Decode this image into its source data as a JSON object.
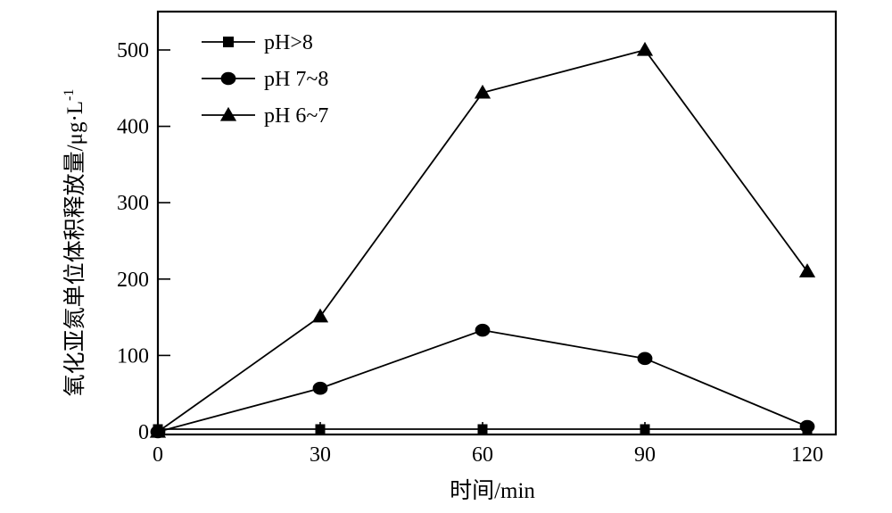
{
  "chart_data": {
    "type": "line",
    "title": "",
    "xlabel": "时间/min",
    "ylabel": "氧化亚氮单位体积释放量/μg·L",
    "ylabel_superscript": "-1",
    "x": [
      0,
      30,
      60,
      90,
      120
    ],
    "xlim": [
      0,
      125
    ],
    "ylim": [
      0,
      555
    ],
    "xticks": [
      0,
      30,
      60,
      90,
      120
    ],
    "yticks": [
      0,
      100,
      200,
      300,
      400,
      500
    ],
    "grid": false,
    "legend_position": "upper-left",
    "series": [
      {
        "name": "pH>8",
        "marker": "square",
        "values": [
          0,
          0,
          0,
          0,
          0
        ]
      },
      {
        "name": "pH 7~8",
        "marker": "circle",
        "values": [
          0,
          57,
          133,
          96,
          7
        ]
      },
      {
        "name": "pH 6~7",
        "marker": "triangle",
        "values": [
          0,
          151,
          444,
          500,
          210
        ]
      }
    ]
  },
  "colors": {
    "line": "#000000",
    "background": "#ffffff"
  }
}
